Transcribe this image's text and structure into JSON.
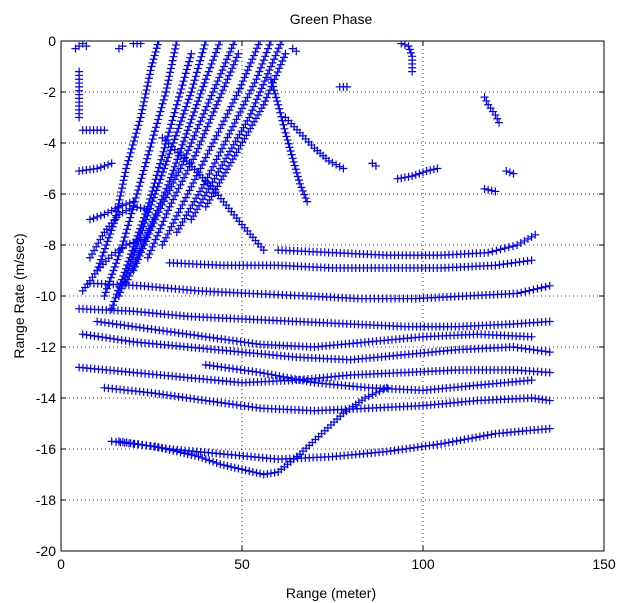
{
  "chart_data": {
    "type": "scatter",
    "title": "Green Phase",
    "xlabel": "Range (meter)",
    "ylabel": "Range Rate (m/sec)",
    "xlim": [
      0,
      150
    ],
    "ylim": [
      -20,
      0
    ],
    "xticks": [
      "0",
      "50",
      "100",
      "150"
    ],
    "yticks": [
      "0",
      "-2",
      "-4",
      "-6",
      "-8",
      "-10",
      "-12",
      "-14",
      "-16",
      "-18",
      "-20"
    ],
    "grid": true,
    "marker": "+",
    "color": "#0000FF",
    "series": [
      {
        "values": [
          [
            14,
            -15.7
          ],
          [
            20,
            -15.8
          ],
          [
            26,
            -15.9
          ],
          [
            32,
            -16.1
          ],
          [
            38,
            -16.3
          ],
          [
            44,
            -16.6
          ],
          [
            50,
            -16.8
          ],
          [
            56,
            -17.0
          ],
          [
            60,
            -16.9
          ],
          [
            66,
            -16.2
          ],
          [
            72,
            -15.4
          ],
          [
            78,
            -14.6
          ],
          [
            84,
            -14.0
          ],
          [
            90,
            -13.6
          ]
        ]
      },
      {
        "values": [
          [
            16,
            -15.7
          ],
          [
            30,
            -16.0
          ],
          [
            45,
            -16.2
          ],
          [
            60,
            -16.4
          ],
          [
            75,
            -16.3
          ],
          [
            90,
            -16.1
          ],
          [
            105,
            -15.8
          ],
          [
            120,
            -15.4
          ],
          [
            135,
            -15.2
          ]
        ]
      },
      {
        "values": [
          [
            12,
            -13.6
          ],
          [
            25,
            -13.8
          ],
          [
            40,
            -14.1
          ],
          [
            55,
            -14.4
          ],
          [
            70,
            -14.5
          ],
          [
            85,
            -14.4
          ],
          [
            100,
            -14.3
          ],
          [
            115,
            -14.1
          ],
          [
            130,
            -14.0
          ],
          [
            135,
            -14.1
          ]
        ]
      },
      {
        "values": [
          [
            5,
            -12.8
          ],
          [
            20,
            -13.0
          ],
          [
            35,
            -13.2
          ],
          [
            50,
            -13.4
          ],
          [
            65,
            -13.3
          ],
          [
            80,
            -13.1
          ],
          [
            95,
            -13.0
          ],
          [
            110,
            -12.9
          ],
          [
            125,
            -12.9
          ],
          [
            135,
            -13.0
          ]
        ]
      },
      {
        "values": [
          [
            6,
            -11.5
          ],
          [
            20,
            -11.8
          ],
          [
            35,
            -12.0
          ],
          [
            50,
            -12.2
          ],
          [
            65,
            -12.4
          ],
          [
            80,
            -12.5
          ],
          [
            95,
            -12.3
          ],
          [
            110,
            -12.1
          ],
          [
            125,
            -12.0
          ],
          [
            135,
            -12.2
          ]
        ]
      },
      {
        "values": [
          [
            5,
            -10.5
          ],
          [
            20,
            -10.6
          ],
          [
            35,
            -10.8
          ],
          [
            50,
            -10.9
          ],
          [
            65,
            -11.0
          ],
          [
            80,
            -11.1
          ],
          [
            95,
            -11.2
          ],
          [
            110,
            -11.2
          ],
          [
            125,
            -11.1
          ],
          [
            135,
            -11.0
          ]
        ]
      },
      {
        "values": [
          [
            8,
            -9.5
          ],
          [
            22,
            -9.6
          ],
          [
            38,
            -9.8
          ],
          [
            52,
            -9.9
          ],
          [
            68,
            -10.0
          ],
          [
            82,
            -10.1
          ],
          [
            98,
            -10.1
          ],
          [
            112,
            -10.0
          ],
          [
            126,
            -9.9
          ],
          [
            135,
            -9.6
          ]
        ]
      },
      {
        "values": [
          [
            30,
            -8.7
          ],
          [
            45,
            -8.8
          ],
          [
            60,
            -8.8
          ],
          [
            75,
            -8.9
          ],
          [
            90,
            -8.9
          ],
          [
            105,
            -8.9
          ],
          [
            120,
            -8.8
          ],
          [
            130,
            -8.6
          ]
        ]
      },
      {
        "values": [
          [
            60,
            -8.2
          ],
          [
            75,
            -8.3
          ],
          [
            90,
            -8.4
          ],
          [
            105,
            -8.4
          ],
          [
            118,
            -8.3
          ],
          [
            126,
            -8.0
          ],
          [
            131,
            -7.6
          ]
        ]
      },
      {
        "values": [
          [
            10,
            -11.0
          ],
          [
            25,
            -11.3
          ],
          [
            40,
            -11.6
          ],
          [
            55,
            -11.9
          ],
          [
            70,
            -12.0
          ],
          [
            85,
            -11.8
          ],
          [
            100,
            -11.6
          ],
          [
            115,
            -11.5
          ],
          [
            130,
            -11.6
          ]
        ]
      },
      {
        "values": [
          [
            40,
            -12.7
          ],
          [
            55,
            -13.0
          ],
          [
            70,
            -13.4
          ],
          [
            85,
            -13.6
          ],
          [
            100,
            -13.7
          ],
          [
            115,
            -13.5
          ],
          [
            130,
            -13.3
          ]
        ]
      },
      {
        "values": [
          [
            10,
            -9.0
          ],
          [
            15,
            -7.0
          ],
          [
            18,
            -5.0
          ],
          [
            22,
            -3.0
          ],
          [
            25,
            -1.0
          ],
          [
            27,
            0.0
          ]
        ]
      },
      {
        "values": [
          [
            12,
            -10.0
          ],
          [
            17,
            -8.0
          ],
          [
            21,
            -6.0
          ],
          [
            25,
            -4.0
          ],
          [
            29,
            -2.0
          ],
          [
            32,
            0.0
          ]
        ]
      },
      {
        "values": [
          [
            14,
            -10.5
          ],
          [
            19,
            -8.5
          ],
          [
            24,
            -6.5
          ],
          [
            28,
            -4.5
          ],
          [
            32,
            -2.5
          ],
          [
            36,
            -0.5
          ]
        ]
      },
      {
        "values": [
          [
            16,
            -10.0
          ],
          [
            21,
            -8.0
          ],
          [
            26,
            -6.0
          ],
          [
            31,
            -4.0
          ],
          [
            36,
            -2.0
          ],
          [
            40,
            0.0
          ]
        ]
      },
      {
        "values": [
          [
            18,
            -9.5
          ],
          [
            24,
            -7.5
          ],
          [
            30,
            -5.5
          ],
          [
            35,
            -3.5
          ],
          [
            40,
            -1.5
          ],
          [
            44,
            0.0
          ]
        ]
      },
      {
        "values": [
          [
            20,
            -9.0
          ],
          [
            26,
            -7.0
          ],
          [
            33,
            -5.0
          ],
          [
            39,
            -3.0
          ],
          [
            45,
            -1.0
          ],
          [
            48,
            0.0
          ]
        ]
      },
      {
        "values": [
          [
            24,
            -8.5
          ],
          [
            30,
            -6.5
          ],
          [
            37,
            -4.5
          ],
          [
            43,
            -2.5
          ],
          [
            49,
            -0.5
          ]
        ]
      },
      {
        "values": [
          [
            28,
            -8.0
          ],
          [
            35,
            -6.0
          ],
          [
            42,
            -4.0
          ],
          [
            49,
            -2.0
          ],
          [
            55,
            0.0
          ]
        ]
      },
      {
        "values": [
          [
            32,
            -7.5
          ],
          [
            40,
            -5.5
          ],
          [
            47,
            -3.5
          ],
          [
            54,
            -1.5
          ],
          [
            58,
            0.0
          ]
        ]
      },
      {
        "values": [
          [
            36,
            -7.0
          ],
          [
            44,
            -5.0
          ],
          [
            52,
            -3.0
          ],
          [
            58,
            -1.0
          ],
          [
            61,
            0.0
          ]
        ]
      },
      {
        "values": [
          [
            40,
            -6.5
          ],
          [
            48,
            -4.5
          ],
          [
            56,
            -2.5
          ],
          [
            62,
            -0.5
          ]
        ]
      },
      {
        "values": [
          [
            8,
            -8.5
          ],
          [
            12,
            -7.5
          ],
          [
            16,
            -6.8
          ],
          [
            20,
            -6.5
          ],
          [
            24,
            -6.6
          ]
        ]
      },
      {
        "values": [
          [
            6,
            -9.8
          ],
          [
            10,
            -9.0
          ],
          [
            14,
            -8.4
          ],
          [
            18,
            -8.0
          ],
          [
            22,
            -7.8
          ]
        ]
      },
      {
        "values": [
          [
            8,
            -7.0
          ],
          [
            12,
            -6.8
          ],
          [
            16,
            -6.5
          ],
          [
            20,
            -6.3
          ]
        ]
      },
      {
        "values": [
          [
            28,
            -3.8
          ],
          [
            34,
            -4.6
          ],
          [
            42,
            -5.8
          ],
          [
            50,
            -7.2
          ],
          [
            56,
            -8.2
          ]
        ]
      },
      {
        "values": [
          [
            58,
            -1.5
          ],
          [
            60,
            -2.5
          ],
          [
            62,
            -3.6
          ],
          [
            64,
            -4.6
          ],
          [
            66,
            -5.6
          ],
          [
            68,
            -6.3
          ]
        ]
      },
      {
        "values": [
          [
            62,
            -3.0
          ],
          [
            66,
            -3.6
          ],
          [
            70,
            -4.2
          ],
          [
            74,
            -4.7
          ],
          [
            78,
            -5.0
          ]
        ]
      },
      {
        "values": [
          [
            6,
            -0.1
          ],
          [
            7,
            -0.2
          ]
        ]
      },
      {
        "values": [
          [
            20,
            -0.1
          ],
          [
            22,
            -0.1
          ]
        ]
      },
      {
        "values": [
          [
            16,
            -0.3
          ],
          [
            17,
            -0.2
          ]
        ]
      },
      {
        "values": [
          [
            4,
            -0.3
          ],
          [
            5,
            -0.2
          ]
        ]
      },
      {
        "values": [
          [
            5,
            -1.2
          ],
          [
            5,
            -2.1
          ],
          [
            5,
            -3.0
          ]
        ]
      },
      {
        "values": [
          [
            6,
            -3.5
          ],
          [
            9,
            -3.5
          ],
          [
            12,
            -3.5
          ]
        ]
      },
      {
        "values": [
          [
            5,
            -5.1
          ],
          [
            10,
            -5.0
          ],
          [
            14,
            -4.8
          ]
        ]
      },
      {
        "values": [
          [
            64,
            -0.3
          ],
          [
            65,
            -0.4
          ]
        ]
      },
      {
        "values": [
          [
            77,
            -1.8
          ],
          [
            79,
            -1.8
          ]
        ]
      },
      {
        "values": [
          [
            94,
            -0.1
          ],
          [
            96,
            -0.2
          ],
          [
            97,
            -0.6
          ],
          [
            97,
            -0.9
          ],
          [
            97,
            -1.2
          ]
        ]
      },
      {
        "values": [
          [
            86,
            -4.8
          ],
          [
            87,
            -4.9
          ]
        ]
      },
      {
        "values": [
          [
            93,
            -5.4
          ],
          [
            97,
            -5.3
          ],
          [
            101,
            -5.1
          ],
          [
            104,
            -5.0
          ]
        ]
      },
      {
        "values": [
          [
            117,
            -2.2
          ],
          [
            118,
            -2.5
          ],
          [
            120,
            -2.9
          ],
          [
            121,
            -3.2
          ]
        ]
      },
      {
        "values": [
          [
            117,
            -5.8
          ],
          [
            120,
            -5.9
          ]
        ]
      },
      {
        "values": [
          [
            123,
            -5.1
          ],
          [
            125,
            -5.2
          ]
        ]
      }
    ]
  }
}
